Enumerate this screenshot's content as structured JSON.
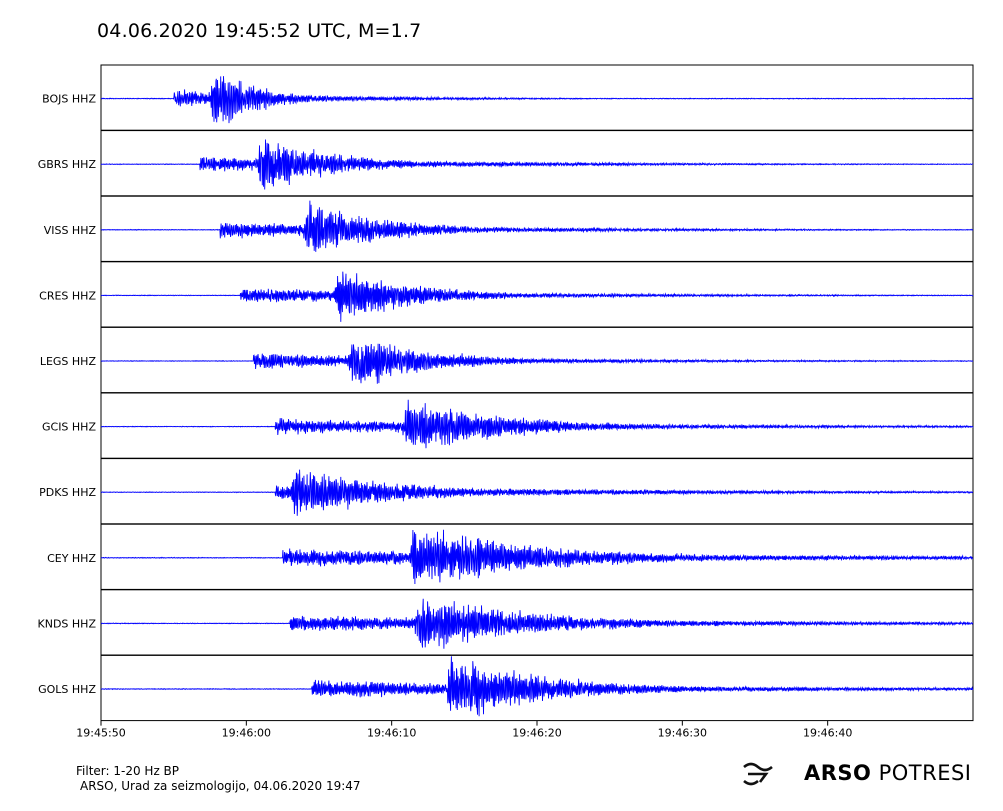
{
  "title": "04.06.2020  19:45:52 UTC, M=1.7",
  "chart_data": {
    "type": "line",
    "title": "04.06.2020  19:45:52 UTC, M=1.7",
    "xlabel": "",
    "ylabel": "",
    "x_ticks": [
      "19:45:50",
      "19:46:00",
      "19:46:10",
      "19:46:20",
      "19:46:30",
      "19:46:40"
    ],
    "x_tick_seconds": [
      0,
      10,
      20,
      30,
      40,
      50
    ],
    "xlim_seconds": [
      0,
      60
    ],
    "grid": false,
    "line_color": "#0000ff",
    "series": [
      {
        "name": "BOJS HHZ",
        "p_arrival_s": 5.0,
        "s_arrival_s": 7.8,
        "amplitude": 1.0,
        "coda_s": 14
      },
      {
        "name": "GBRS HHZ",
        "p_arrival_s": 6.8,
        "s_arrival_s": 11.0,
        "amplitude": 0.85,
        "coda_s": 24
      },
      {
        "name": "VISS HHZ",
        "p_arrival_s": 8.2,
        "s_arrival_s": 14.2,
        "amplitude": 0.9,
        "coda_s": 24
      },
      {
        "name": "CRES HHZ",
        "p_arrival_s": 9.6,
        "s_arrival_s": 16.3,
        "amplitude": 0.85,
        "coda_s": 24
      },
      {
        "name": "LEGS HHZ",
        "p_arrival_s": 10.5,
        "s_arrival_s": 17.3,
        "amplitude": 0.85,
        "coda_s": 24
      },
      {
        "name": "GCIS HHZ",
        "p_arrival_s": 12.0,
        "s_arrival_s": 21.0,
        "amplitude": 0.85,
        "coda_s": 32
      },
      {
        "name": "PDKS HHZ",
        "p_arrival_s": 12.0,
        "s_arrival_s": 13.3,
        "amplitude": 0.85,
        "coda_s": 30
      },
      {
        "name": "CEY HHZ",
        "p_arrival_s": 12.5,
        "s_arrival_s": 21.5,
        "amplitude": 1.0,
        "coda_s": 40
      },
      {
        "name": "KNDS HHZ",
        "p_arrival_s": 13.0,
        "s_arrival_s": 21.8,
        "amplitude": 0.9,
        "coda_s": 36
      },
      {
        "name": "GOLS HHZ",
        "p_arrival_s": 14.5,
        "s_arrival_s": 24.0,
        "amplitude": 1.0,
        "coda_s": 32
      }
    ]
  },
  "footer": {
    "filter": "Filter: 1-20 Hz BP",
    "credit": "ARSO, Urad za seizmologijo, 04.06.2020  19:47"
  },
  "logo": {
    "bold": "ARSO",
    "light": "POTRESI"
  }
}
